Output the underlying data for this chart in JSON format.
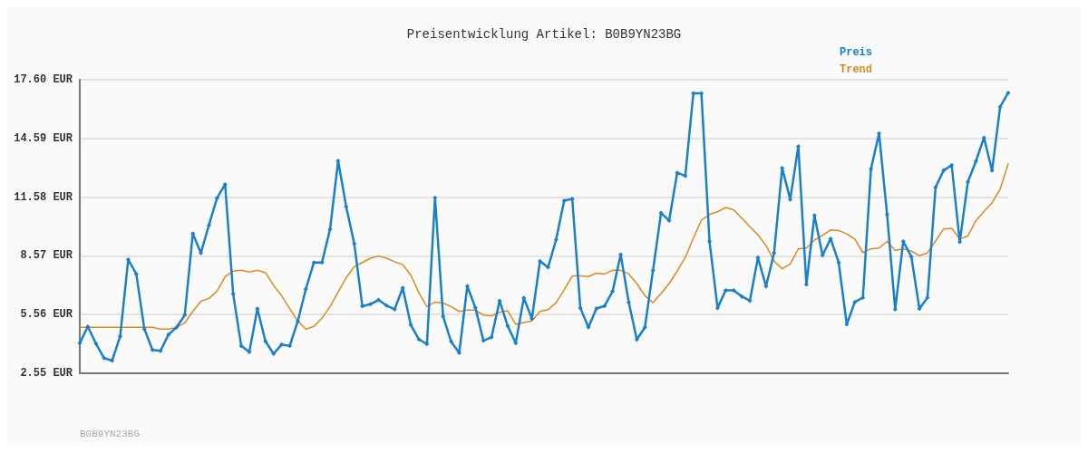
{
  "chart_data": {
    "type": "line",
    "title": "Preisentwicklung Artikel: B0B9YN23BG",
    "categories": [
      null,
      null,
      null,
      null,
      null,
      null,
      null,
      null,
      null,
      null,
      null,
      null,
      null,
      null,
      null,
      null,
      null,
      null,
      null,
      null,
      null,
      null,
      null,
      null,
      null,
      null,
      null,
      null,
      null,
      null,
      null,
      null,
      null,
      null,
      null,
      null,
      null,
      null,
      null,
      null,
      null,
      null,
      null,
      null,
      null,
      null,
      null,
      null,
      null,
      null,
      null,
      null,
      null,
      null,
      null,
      null,
      null,
      null,
      null,
      null,
      null,
      null,
      null,
      null,
      null,
      null,
      null,
      null,
      null,
      null,
      null,
      null,
      null,
      null,
      null,
      null,
      null,
      null,
      null,
      null,
      null,
      null,
      null,
      null,
      null,
      null,
      null,
      null,
      null,
      null,
      null,
      null,
      null,
      null,
      null,
      null,
      null,
      null,
      null,
      null,
      null,
      null,
      null,
      null,
      null,
      null,
      null,
      null,
      null,
      null,
      null,
      null,
      null,
      null,
      null,
      null
    ],
    "series": [
      {
        "name": "Preis",
        "color": "#1a7fcc",
        "marker": "diamond",
        "values": [
          4.1,
          4.94,
          4.07,
          3.33,
          3.2,
          4.44,
          8.38,
          7.64,
          4.82,
          3.75,
          3.7,
          4.54,
          4.91,
          5.53,
          9.71,
          8.72,
          10.15,
          11.53,
          12.24,
          6.61,
          3.95,
          3.64,
          5.86,
          4.19,
          3.55,
          4.02,
          3.95,
          5.21,
          6.87,
          8.23,
          8.23,
          9.94,
          13.44,
          11.09,
          9.19,
          5.99,
          6.09,
          6.31,
          6.02,
          5.83,
          6.93,
          5.03,
          4.29,
          4.05,
          11.55,
          5.47,
          4.17,
          3.6,
          7.02,
          5.91,
          4.22,
          4.4,
          6.27,
          4.98,
          4.1,
          6.42,
          5.35,
          8.3,
          7.98,
          9.4,
          11.4,
          11.49,
          5.9,
          4.91,
          5.87,
          6.0,
          6.75,
          8.64,
          6.18,
          4.28,
          4.91,
          7.82,
          10.77,
          10.38,
          12.83,
          12.67,
          16.9,
          16.9,
          9.31,
          5.9,
          6.8,
          6.8,
          6.49,
          6.27,
          8.48,
          7.01,
          8.72,
          13.07,
          11.46,
          14.19,
          7.1,
          10.64,
          8.6,
          9.45,
          8.23,
          5.06,
          6.2,
          6.43,
          13.03,
          14.85,
          10.69,
          5.82,
          9.31,
          8.53,
          5.86,
          6.43,
          12.08,
          12.95,
          13.22,
          9.28,
          12.36,
          13.42,
          14.63,
          12.94,
          16.21,
          16.93
        ]
      },
      {
        "name": "Trend",
        "color": "#e08a1e",
        "marker": "none",
        "values": [
          4.91,
          4.91,
          4.91,
          4.91,
          4.91,
          4.91,
          4.91,
          4.91,
          4.91,
          4.91,
          4.81,
          4.81,
          4.91,
          5.13,
          5.72,
          6.24,
          6.39,
          6.76,
          7.5,
          7.79,
          7.83,
          7.74,
          7.83,
          7.71,
          7.05,
          6.53,
          5.87,
          5.23,
          4.81,
          4.95,
          5.38,
          5.97,
          6.71,
          7.45,
          8.01,
          8.23,
          8.45,
          8.56,
          8.45,
          8.27,
          8.12,
          7.59,
          6.68,
          5.97,
          6.2,
          6.15,
          5.97,
          5.72,
          5.79,
          5.79,
          5.53,
          5.49,
          5.68,
          5.75,
          5.06,
          5.15,
          5.23,
          5.72,
          5.81,
          6.17,
          6.83,
          7.54,
          7.54,
          7.51,
          7.68,
          7.64,
          7.83,
          7.83,
          7.64,
          7.15,
          6.53,
          6.17,
          6.64,
          7.15,
          7.79,
          8.49,
          9.48,
          10.4,
          10.7,
          10.83,
          11.05,
          10.92,
          10.5,
          10.06,
          9.65,
          9.1,
          8.3,
          7.91,
          8.15,
          8.93,
          8.97,
          9.37,
          9.62,
          9.9,
          9.87,
          9.7,
          9.43,
          8.74,
          8.93,
          8.97,
          9.31,
          8.84,
          8.93,
          8.81,
          8.58,
          8.72,
          9.33,
          9.95,
          9.98,
          9.43,
          9.59,
          10.37,
          10.85,
          11.29,
          11.99,
          13.29
        ]
      }
    ],
    "ylim": [
      2.55,
      17.6
    ],
    "yticks": [
      {
        "value": 2.55,
        "label": "2.55 EUR"
      },
      {
        "value": 5.56,
        "label": "5.56 EUR"
      },
      {
        "value": 8.57,
        "label": "8.57 EUR"
      },
      {
        "value": 11.58,
        "label": "11.58 EUR"
      },
      {
        "value": 14.59,
        "label": "14.59 EUR"
      },
      {
        "value": 17.6,
        "label": "17.60 EUR"
      }
    ],
    "grid": "y",
    "legend": "top right",
    "line_style": "solid",
    "annotations": [
      "B0B9YN23BG"
    ]
  }
}
